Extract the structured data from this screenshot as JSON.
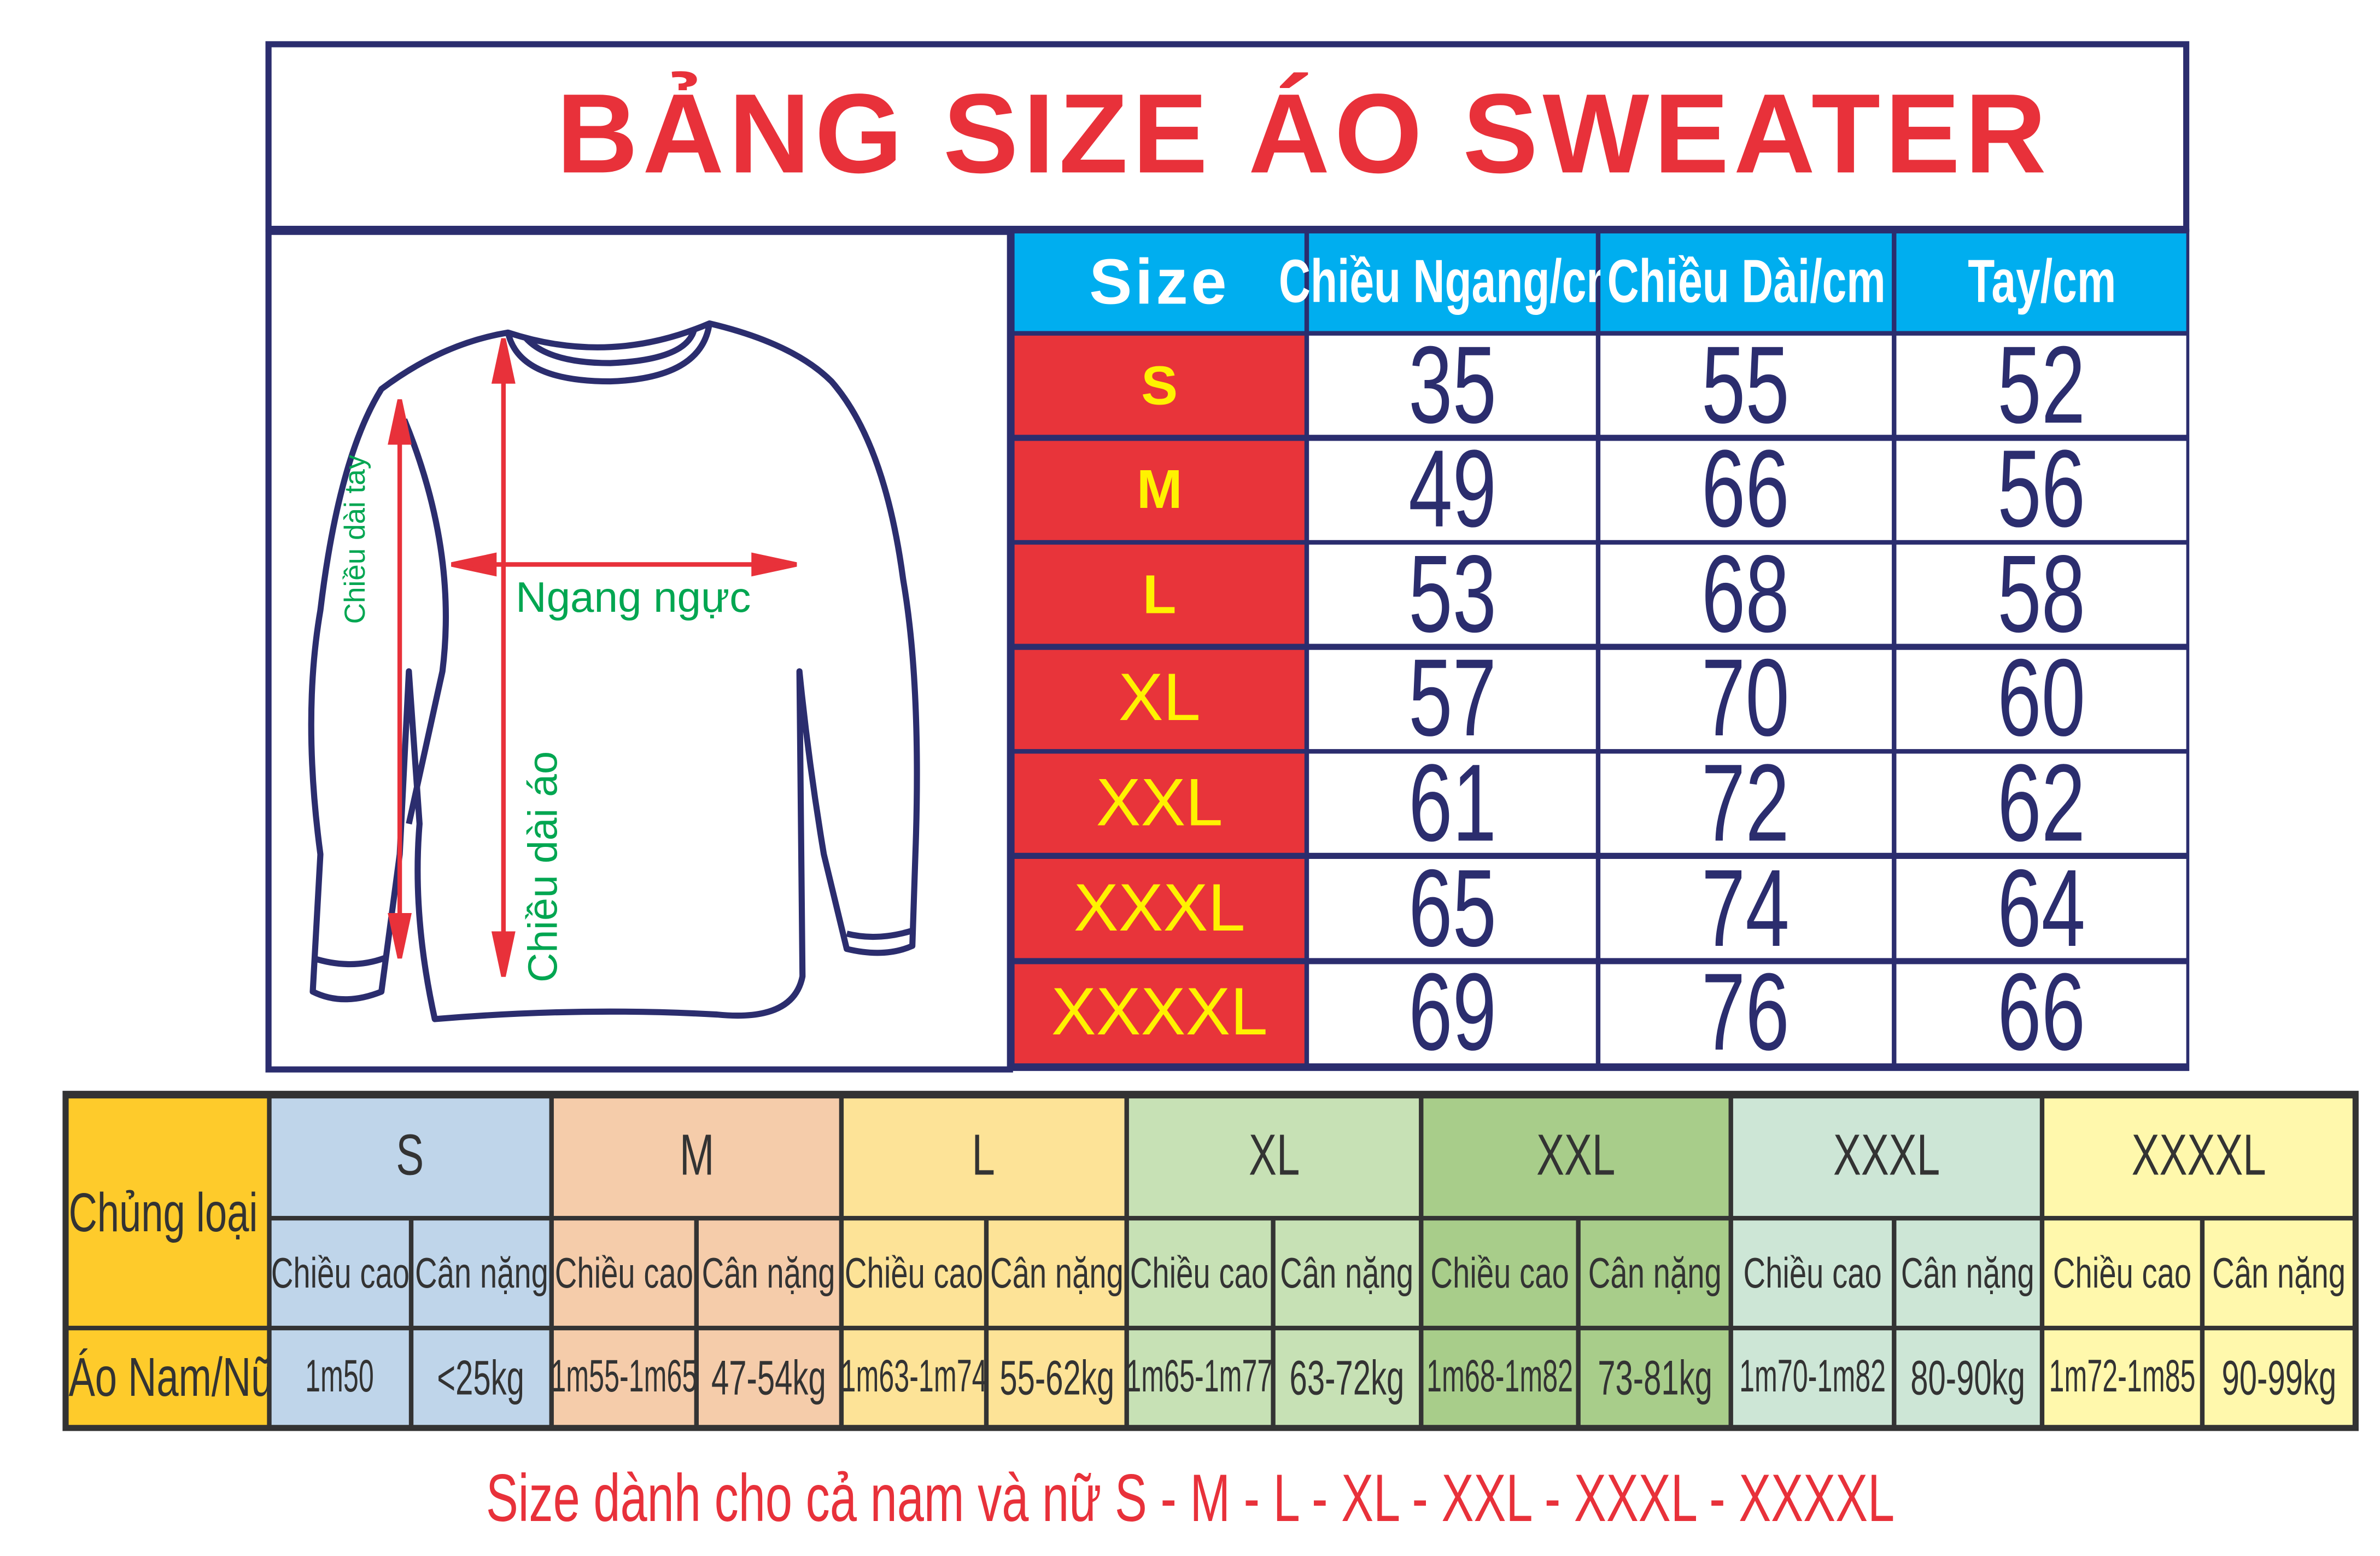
{
  "title": "BẢNG SIZE ÁO SWEATER",
  "diagram": {
    "sleeve_label": "Chiều dài tay",
    "chest_label": "Ngang ngực",
    "length_label": "Chiều dài áo"
  },
  "size_table": {
    "headers": [
      "Size",
      "Chiều Ngang/cm",
      "Chiều Dài/cm",
      "Tay/cm"
    ],
    "rows": [
      {
        "size": "S",
        "width": "35",
        "length": "55",
        "sleeve": "52"
      },
      {
        "size": "M",
        "width": "49",
        "length": "66",
        "sleeve": "56"
      },
      {
        "size": "L",
        "width": "53",
        "length": "68",
        "sleeve": "58"
      },
      {
        "size": "XL",
        "width": "57",
        "length": "70",
        "sleeve": "60"
      },
      {
        "size": "XXL",
        "width": "61",
        "length": "72",
        "sleeve": "62"
      },
      {
        "size": "XXXL",
        "width": "65",
        "length": "74",
        "sleeve": "64"
      },
      {
        "size": "XXXXL",
        "width": "69",
        "length": "76",
        "sleeve": "66"
      }
    ]
  },
  "fit_table": {
    "category_header": "Chủng loại",
    "row_label": "Áo Nam/Nữ",
    "height_label": "Chiều cao",
    "weight_label": "Cân nặng",
    "sizes": [
      {
        "size": "S",
        "height": "1m50",
        "weight": "<25kg",
        "color": "#bfd5ea"
      },
      {
        "size": "M",
        "height": "1m55-1m65",
        "weight": "47-54kg",
        "color": "#f5ccaa"
      },
      {
        "size": "L",
        "height": "1m63-1m74",
        "weight": "55-62kg",
        "color": "#fde397"
      },
      {
        "size": "XL",
        "height": "1m65-1m77",
        "weight": "63-72kg",
        "color": "#c7e1b5"
      },
      {
        "size": "XXL",
        "height": "1m68-1m82",
        "weight": "73-81kg",
        "color": "#a8cd8a"
      },
      {
        "size": "XXXL",
        "height": "1m70-1m82",
        "weight": "80-90kg",
        "color": "#cde6d6"
      },
      {
        "size": "XXXXL",
        "height": "1m72-1m85",
        "weight": "90-99kg",
        "color": "#fff8ac"
      }
    ],
    "category_color": "#fecb2b"
  },
  "footer": "Size dành cho cả nam và nữ S - M - L - XL - XXL - XXXL - XXXXL",
  "colors": {
    "title": "#e8313a",
    "header": "#00aeef",
    "size_cell": "#e8343a",
    "size_text": "#fff200",
    "numbers": "#2b2d6e",
    "outline": "#2b2d6e",
    "annotation": "#00a651"
  }
}
